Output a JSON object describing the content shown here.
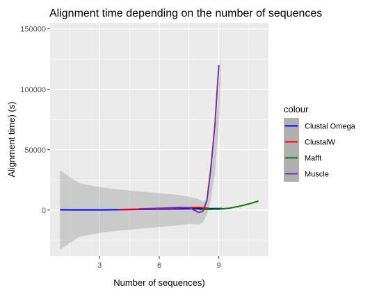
{
  "chart_data": {
    "type": "line",
    "title": "Alignment time depending on the number of sequences",
    "xlabel": "Number of sequences)",
    "ylabel": "Alignment time) (s)",
    "xlim": [
      0.5,
      11.5
    ],
    "ylim": [
      -38000,
      155000
    ],
    "x_ticks": [
      3,
      6,
      9
    ],
    "y_ticks": [
      0,
      50000,
      100000,
      150000
    ],
    "x_tick_labels": [
      "3",
      "6",
      "9"
    ],
    "y_tick_labels": [
      "0",
      "50000",
      "100000",
      "150000"
    ],
    "grid": true,
    "background": "#ebebeb",
    "legend": {
      "title": "colour",
      "position": "right"
    },
    "confidence_band": {
      "color": "#999999",
      "x": [
        1,
        1.5,
        2,
        3,
        4,
        5,
        6,
        7,
        7.5,
        8,
        8.2,
        8.4,
        8.6,
        8.8,
        9,
        9.1
      ],
      "upper": [
        33000,
        27000,
        22000,
        19000,
        17000,
        15500,
        14000,
        12500,
        11000,
        9000,
        7000,
        9000,
        30000,
        60000,
        100000,
        135000
      ],
      "lower": [
        -33000,
        -27000,
        -22000,
        -19000,
        -17000,
        -15500,
        -14000,
        -12500,
        -11500,
        -12000,
        -10000,
        -4000,
        9000,
        30000,
        70000,
        108000
      ]
    },
    "series": [
      {
        "name": "Clustal Omega",
        "color": "#0000ff",
        "x": [
          1,
          2,
          3,
          4,
          5,
          6,
          7,
          8,
          8.5,
          9.2
        ],
        "y": [
          200,
          150,
          120,
          300,
          500,
          700,
          900,
          1100,
          1200,
          1300
        ]
      },
      {
        "name": "ClustalW",
        "color": "#ff0000",
        "x": [
          4,
          5,
          6,
          7,
          8,
          8.5
        ],
        "y": [
          500,
          800,
          1200,
          1800,
          2300,
          1500
        ]
      },
      {
        "name": "Mafft",
        "color": "#008000",
        "x": [
          8,
          8.5,
          9,
          9.5,
          10,
          10.5,
          11
        ],
        "y": [
          400,
          500,
          700,
          1500,
          3000,
          5000,
          7500
        ]
      },
      {
        "name": "Muscle",
        "color": "#7030a0",
        "x": [
          5,
          6,
          7,
          7.5,
          8,
          8.2,
          8.4,
          8.6,
          8.8,
          9.0
        ],
        "y": [
          1000,
          1500,
          2200,
          2000,
          -2000,
          -1000,
          8000,
          35000,
          70000,
          120000
        ]
      }
    ]
  }
}
